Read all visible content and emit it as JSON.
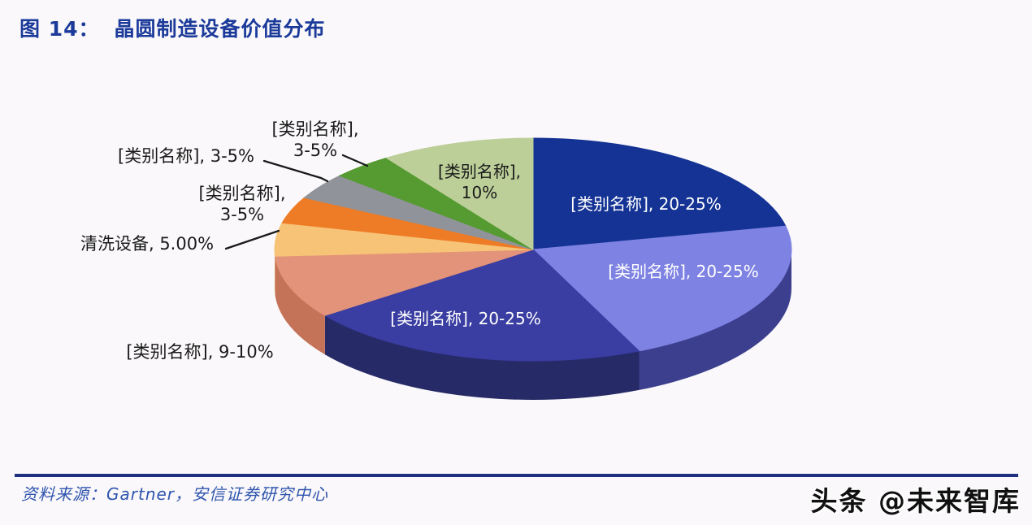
{
  "page": {
    "background": "#faf8fa"
  },
  "header": {
    "figure_label": "图 14：",
    "title": "晶圆制造设备价值分布",
    "color": "#1b3a9a"
  },
  "footer": {
    "source_text": "资料来源：Gartner，安信证券研究中心",
    "text_color": "#2f55ae",
    "rule_color": "#1e3181",
    "watermark": "头条 @未来智库",
    "watermark_color": "#111111"
  },
  "chart_data": {
    "type": "pie",
    "is_3d": true,
    "title": "晶圆制造设备价值分布",
    "start_angle_deg": 90,
    "direction": "clockwise",
    "legend": "none",
    "slices": [
      {
        "label": "[类别名称]",
        "value_text": "20-25%",
        "value": 22.5,
        "color": "#143394",
        "side_color": "#0d2264",
        "label_lines": [
          "[类别名称], 20-25%"
        ],
        "label_color": "#ffffff",
        "label_inside": true
      },
      {
        "label": "[类别名称]",
        "value_text": "20-25%",
        "value": 22.5,
        "color": "#7e82e2",
        "side_color": "#3c3f8e",
        "label_lines": [
          "[类别名称], 20-25%"
        ],
        "label_color": "#ffffff",
        "label_inside": true
      },
      {
        "label": "[类别名称]",
        "value_text": "20-25%",
        "value": 22.5,
        "color": "#3a3da1",
        "side_color": "#262a66",
        "label_lines": [
          "[类别名称], 20-25%"
        ],
        "label_color": "#ffffff",
        "label_inside": true
      },
      {
        "label": "[类别名称]",
        "value_text": "9-10%",
        "value": 9.5,
        "color": "#e29379",
        "side_color": "#c47258",
        "label_lines": [
          "[类别名称], 9-10%"
        ],
        "label_color": "#1a1a1a",
        "label_inside": false
      },
      {
        "label": "清洗设备",
        "value_text": "5.00%",
        "value": 5,
        "color": "#f6c377",
        "side_color": "#dca360",
        "label_lines": [
          "清洗设备, 5.00%"
        ],
        "label_color": "#1a1a1a",
        "label_inside": false
      },
      {
        "label": "[类别名称]",
        "value_text": "3-5%",
        "value": 4,
        "color": "#ee7c26",
        "side_color": "#b55a12",
        "label_lines": [
          "[类别名称],",
          "3-5%"
        ],
        "label_color": "#1a1a1a",
        "label_inside": false
      },
      {
        "label": "[类别名称]",
        "value_text": "3-5%",
        "value": 4,
        "color": "#90939a",
        "side_color": "#6b6e72",
        "label_lines": [
          "[类别名称], 3-5%"
        ],
        "label_color": "#1a1a1a",
        "label_inside": false
      },
      {
        "label": "[类别名称]",
        "value_text": "3-5%",
        "value": 4,
        "color": "#569a32",
        "side_color": "#3a6e1f",
        "label_lines": [
          "[类别名称],",
          "3-5%"
        ],
        "label_color": "#1a1a1a",
        "label_inside": false
      },
      {
        "label": "[类别名称]",
        "value_text": "10%",
        "value": 10,
        "color": "#bccf99",
        "side_color": "#8fa36e",
        "label_lines": [
          "[类别名称],",
          "10%"
        ],
        "label_color": "#1a1a1a",
        "label_inside": true
      }
    ]
  }
}
